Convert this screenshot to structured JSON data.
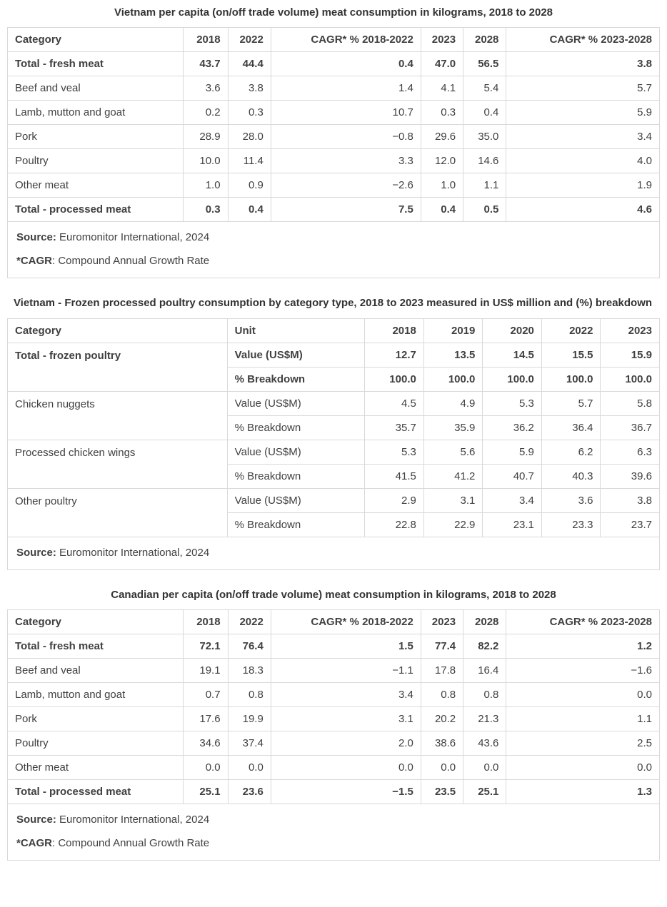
{
  "colors": {
    "text": "#404040",
    "border": "#d9d9d9",
    "title": "#333333"
  },
  "table1": {
    "title": "Vietnam per capita (on/off trade volume) meat consumption in kilograms, 2018 to 2028",
    "columns": [
      "Category",
      "2018",
      "2022",
      "CAGR* % 2018-2022",
      "2023",
      "2028",
      "CAGR* % 2023-2028"
    ],
    "rows": [
      {
        "label": "Total - fresh meat",
        "bold": true,
        "values": [
          "43.7",
          "44.4",
          "0.4",
          "47.0",
          "56.5",
          "3.8"
        ]
      },
      {
        "label": "Beef and veal",
        "bold": false,
        "values": [
          "3.6",
          "3.8",
          "1.4",
          "4.1",
          "5.4",
          "5.7"
        ]
      },
      {
        "label": "Lamb, mutton and goat",
        "bold": false,
        "values": [
          "0.2",
          "0.3",
          "10.7",
          "0.3",
          "0.4",
          "5.9"
        ]
      },
      {
        "label": "Pork",
        "bold": false,
        "values": [
          "28.9",
          "28.0",
          "−0.8",
          "29.6",
          "35.0",
          "3.4"
        ]
      },
      {
        "label": "Poultry",
        "bold": false,
        "values": [
          "10.0",
          "11.4",
          "3.3",
          "12.0",
          "14.6",
          "4.0"
        ]
      },
      {
        "label": "Other meat",
        "bold": false,
        "values": [
          "1.0",
          "0.9",
          "−2.6",
          "1.0",
          "1.1",
          "1.9"
        ]
      },
      {
        "label": "Total - processed meat",
        "bold": true,
        "values": [
          "0.3",
          "0.4",
          "7.5",
          "0.4",
          "0.5",
          "4.6"
        ]
      }
    ],
    "footer": {
      "source_label": "Source:",
      "source_text": " Euromonitor International, 2024",
      "cagr_label": "*CAGR",
      "cagr_text": ": Compound Annual Growth Rate"
    }
  },
  "table2": {
    "title": "Vietnam - Frozen processed poultry consumption by category type, 2018 to 2023 measured in US$ million and (%) breakdown",
    "columns": [
      "Category",
      "Unit",
      "2018",
      "2019",
      "2020",
      "2022",
      "2023"
    ],
    "groups": [
      {
        "label": "Total - frozen poultry",
        "bold": true,
        "rows": [
          {
            "unit": "Value (US$M)",
            "values": [
              "12.7",
              "13.5",
              "14.5",
              "15.5",
              "15.9"
            ]
          },
          {
            "unit": "% Breakdown",
            "values": [
              "100.0",
              "100.0",
              "100.0",
              "100.0",
              "100.0"
            ]
          }
        ]
      },
      {
        "label": "Chicken nuggets",
        "bold": false,
        "rows": [
          {
            "unit": "Value (US$M)",
            "values": [
              "4.5",
              "4.9",
              "5.3",
              "5.7",
              "5.8"
            ]
          },
          {
            "unit": "% Breakdown",
            "values": [
              "35.7",
              "35.9",
              "36.2",
              "36.4",
              "36.7"
            ]
          }
        ]
      },
      {
        "label": "Processed chicken wings",
        "bold": false,
        "rows": [
          {
            "unit": "Value (US$M)",
            "values": [
              "5.3",
              "5.6",
              "5.9",
              "6.2",
              "6.3"
            ]
          },
          {
            "unit": "% Breakdown",
            "values": [
              "41.5",
              "41.2",
              "40.7",
              "40.3",
              "39.6"
            ]
          }
        ]
      },
      {
        "label": "Other poultry",
        "bold": false,
        "rows": [
          {
            "unit": "Value (US$M)",
            "values": [
              "2.9",
              "3.1",
              "3.4",
              "3.6",
              "3.8"
            ]
          },
          {
            "unit": "% Breakdown",
            "values": [
              "22.8",
              "22.9",
              "23.1",
              "23.3",
              "23.7"
            ]
          }
        ]
      }
    ],
    "footer": {
      "source_label": "Source:",
      "source_text": " Euromonitor International, 2024"
    }
  },
  "table3": {
    "title": "Canadian per capita (on/off trade volume) meat consumption in kilograms, 2018 to 2028",
    "columns": [
      "Category",
      "2018",
      "2022",
      "CAGR* % 2018-2022",
      "2023",
      "2028",
      "CAGR* % 2023-2028"
    ],
    "rows": [
      {
        "label": "Total - fresh meat",
        "bold": true,
        "values": [
          "72.1",
          "76.4",
          "1.5",
          "77.4",
          "82.2",
          "1.2"
        ]
      },
      {
        "label": "Beef and veal",
        "bold": false,
        "values": [
          "19.1",
          "18.3",
          "−1.1",
          "17.8",
          "16.4",
          "−1.6"
        ]
      },
      {
        "label": "Lamb, mutton and goat",
        "bold": false,
        "values": [
          "0.7",
          "0.8",
          "3.4",
          "0.8",
          "0.8",
          "0.0"
        ]
      },
      {
        "label": "Pork",
        "bold": false,
        "values": [
          "17.6",
          "19.9",
          "3.1",
          "20.2",
          "21.3",
          "1.1"
        ]
      },
      {
        "label": "Poultry",
        "bold": false,
        "values": [
          "34.6",
          "37.4",
          "2.0",
          "38.6",
          "43.6",
          "2.5"
        ]
      },
      {
        "label": "Other meat",
        "bold": false,
        "values": [
          "0.0",
          "0.0",
          "0.0",
          "0.0",
          "0.0",
          "0.0"
        ]
      },
      {
        "label": "Total - processed meat",
        "bold": true,
        "values": [
          "25.1",
          "23.6",
          "−1.5",
          "23.5",
          "25.1",
          "1.3"
        ]
      }
    ],
    "footer": {
      "source_label": "Source:",
      "source_text": " Euromonitor International, 2024",
      "cagr_label": "*CAGR",
      "cagr_text": ": Compound Annual Growth Rate"
    }
  }
}
